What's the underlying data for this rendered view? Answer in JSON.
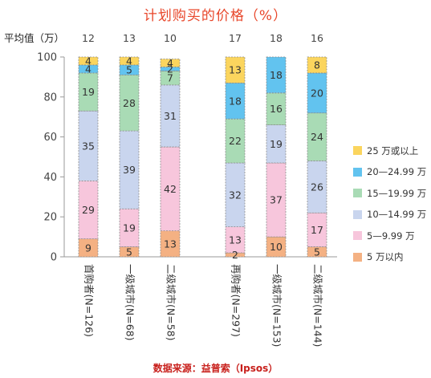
{
  "title": "计划购买的价格（%）",
  "source": "数据来源：益普索（Ipsos）",
  "avg_label": "平均值（万）",
  "chart_data": {
    "type": "bar",
    "stacked": true,
    "title": "计划购买的价格（%）",
    "ylim": [
      0,
      100
    ],
    "yticks": [
      "0",
      "20",
      "40",
      "60",
      "80",
      "100"
    ],
    "categories": [
      "首购者(N=126)",
      "一级城市(N=68)",
      "二级城市(N=58)",
      "再购者(N=297)",
      "一级城市(N=153)",
      "二级城市(N=144)"
    ],
    "averages": [
      "12",
      "13",
      "10",
      "17",
      "18",
      "16"
    ],
    "series": [
      {
        "name": "5 万以内",
        "color": "#f4b183",
        "values": [
          9,
          5,
          13,
          2,
          10,
          5
        ]
      },
      {
        "name": "5—9.99 万",
        "color": "#f7c6dc",
        "values": [
          29,
          19,
          42,
          13,
          37,
          17
        ]
      },
      {
        "name": "10—14.99 万",
        "color": "#c9d5ee",
        "values": [
          35,
          39,
          31,
          32,
          19,
          26
        ]
      },
      {
        "name": "15—19.99 万",
        "color": "#a9dbb5",
        "values": [
          19,
          28,
          7,
          22,
          16,
          24
        ]
      },
      {
        "name": "20—24.99 万",
        "color": "#62c3ef",
        "values": [
          4,
          5,
          2,
          18,
          18,
          20
        ]
      },
      {
        "name": "25 万或以上",
        "color": "#fbd55e",
        "values": [
          4,
          4,
          4,
          13,
          0,
          8
        ]
      }
    ],
    "legend_order": [
      "25 万或以上",
      "20—24.99 万",
      "15—19.99 万",
      "10—14.99 万",
      "5—9.99 万",
      "5 万以内"
    ],
    "legend_position": "right"
  }
}
